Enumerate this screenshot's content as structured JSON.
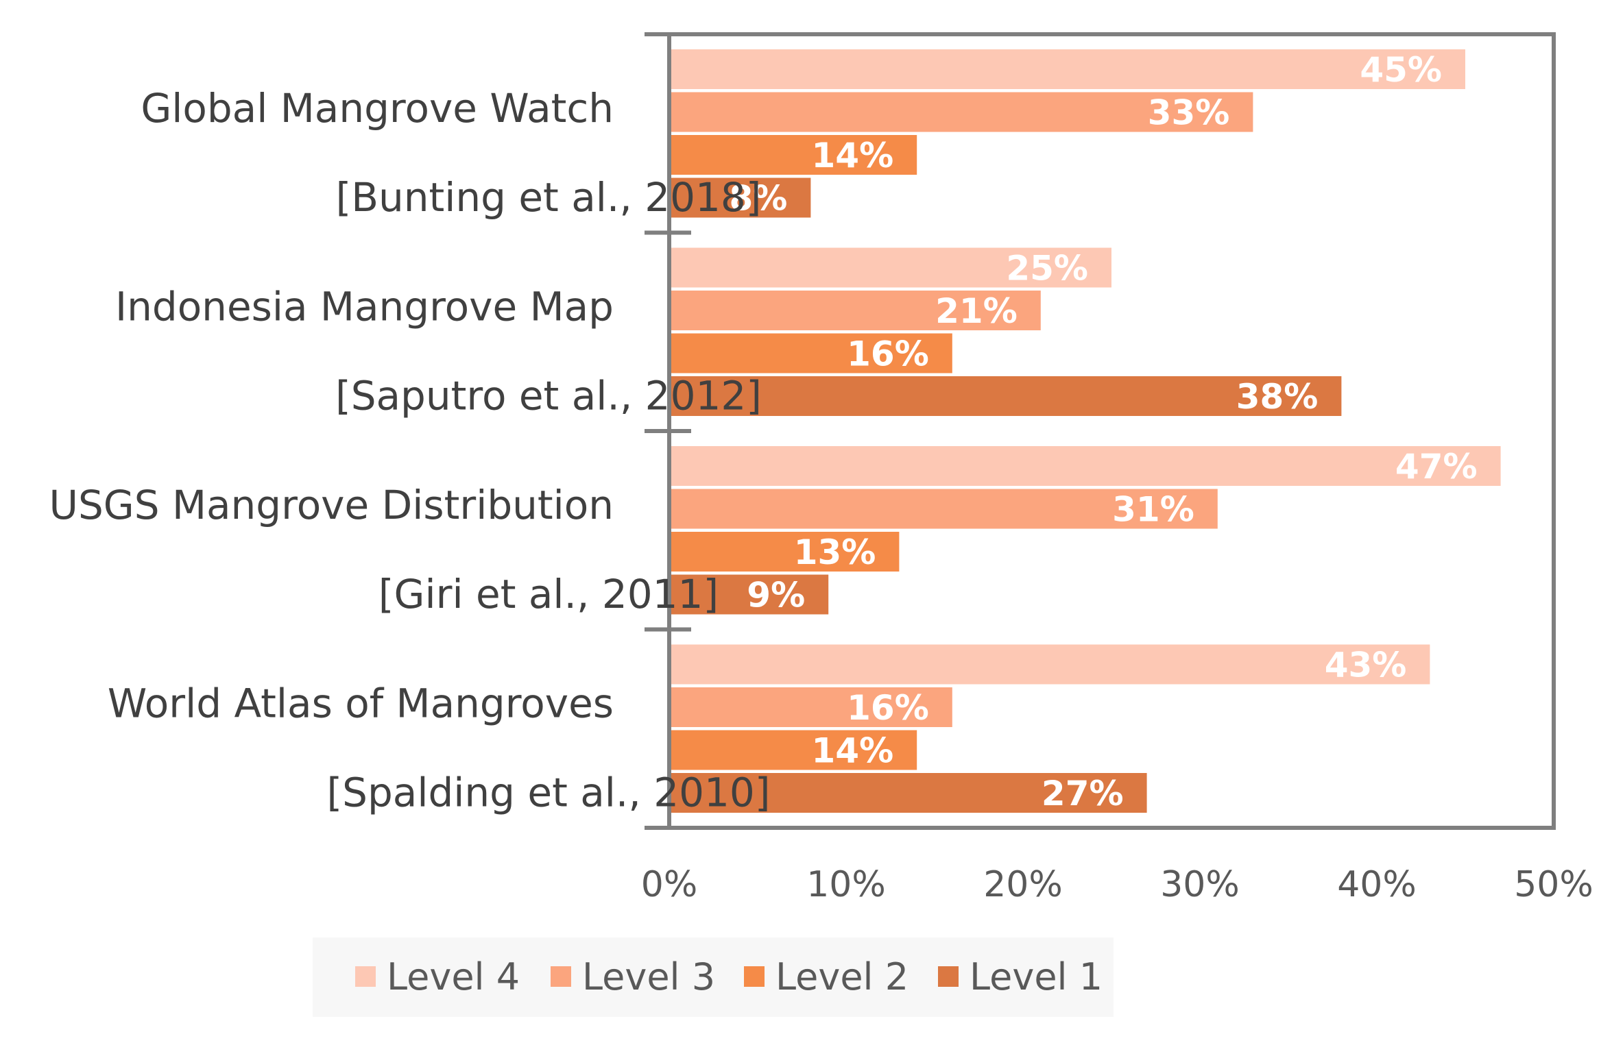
{
  "chart_data": {
    "type": "bar",
    "orientation": "horizontal",
    "categories": [
      [
        "Global Mangrove Watch",
        "[Bunting et al., 2018]"
      ],
      [
        "Indonesia Mangrove Map",
        "[Saputro et al., 2012]"
      ],
      [
        "USGS Mangrove  Distribution",
        "[Giri et al., 2011]"
      ],
      [
        "World Atlas of Mangroves",
        "[Spalding et al., 2010]"
      ]
    ],
    "series": [
      {
        "name": "Level 4",
        "color": "#FDC8B4",
        "values": [
          45,
          25,
          47,
          43
        ],
        "labels": [
          "45%",
          "25%",
          "47%",
          "43%"
        ]
      },
      {
        "name": "Level 3",
        "color": "#FBA57E",
        "values": [
          33,
          21,
          31,
          16
        ],
        "labels": [
          "33%",
          "21%",
          "31%",
          "16%"
        ]
      },
      {
        "name": "Level 2",
        "color": "#F58B48",
        "values": [
          14,
          16,
          13,
          14
        ],
        "labels": [
          "14%",
          "16%",
          "13%",
          "14%"
        ]
      },
      {
        "name": "Level 1",
        "color": "#DB7842",
        "values": [
          8,
          38,
          9,
          27
        ],
        "labels": [
          "8%",
          "38%",
          "9%",
          "27%"
        ]
      }
    ],
    "xlim": [
      0,
      50
    ],
    "xticks": [
      0,
      10,
      20,
      30,
      40,
      50
    ],
    "xtick_labels": [
      "0%",
      "10%",
      "20%",
      "30%",
      "40%",
      "50%"
    ],
    "title": "",
    "xlabel": "",
    "ylabel": "",
    "grid": false,
    "legend_position": "bottom",
    "legend_order": [
      "Level 4",
      "Level 3",
      "Level 2",
      "Level 1"
    ],
    "axis_color": "#7F7F7F",
    "legend_background": "#F7F7F7"
  }
}
